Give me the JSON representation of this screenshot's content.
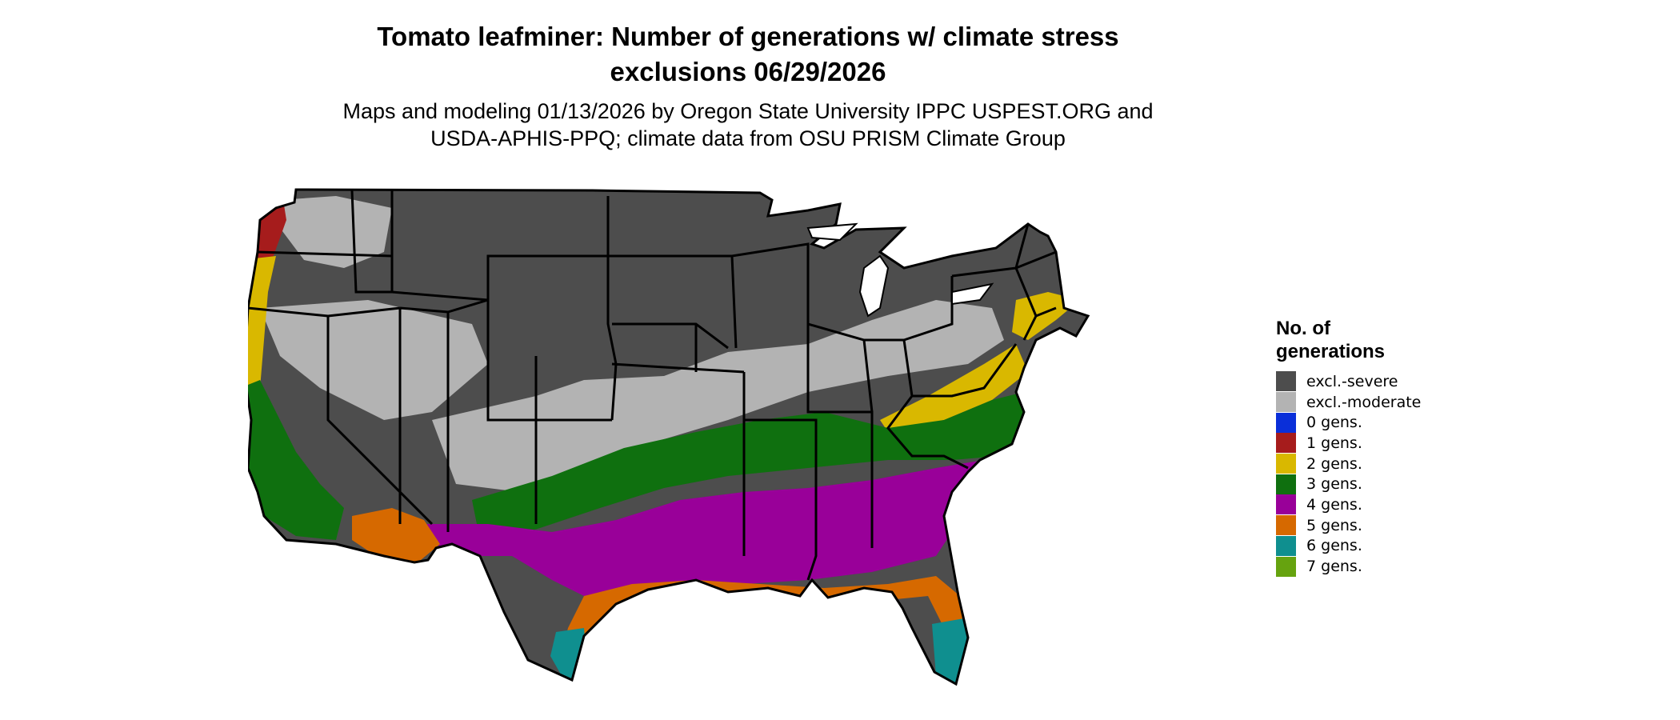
{
  "title": {
    "line1": "Tomato leafminer: Number of generations w/ climate stress",
    "line2": "exclusions 06/29/2026"
  },
  "subtitle": {
    "line1": "Maps and modeling 01/13/2026 by Oregon State University IPPC USPEST.ORG and",
    "line2": "USDA-APHIS-PPQ; climate data from OSU PRISM Climate Group"
  },
  "legend": {
    "title_line1": "No. of",
    "title_line2": "generations",
    "items": [
      {
        "label": "excl.-severe",
        "color": "#4d4d4d"
      },
      {
        "label": "excl.-moderate",
        "color": "#b3b3b3"
      },
      {
        "label": "0 gens.",
        "color": "#0a2fd9"
      },
      {
        "label": "1 gens.",
        "color": "#a61c1c"
      },
      {
        "label": "2 gens.",
        "color": "#d9b800"
      },
      {
        "label": "3 gens.",
        "color": "#0f700f"
      },
      {
        "label": "4 gens.",
        "color": "#990099"
      },
      {
        "label": "5 gens.",
        "color": "#d66900"
      },
      {
        "label": "6 gens.",
        "color": "#0f8f8f"
      },
      {
        "label": "7 gens.",
        "color": "#66a30f"
      }
    ]
  }
}
